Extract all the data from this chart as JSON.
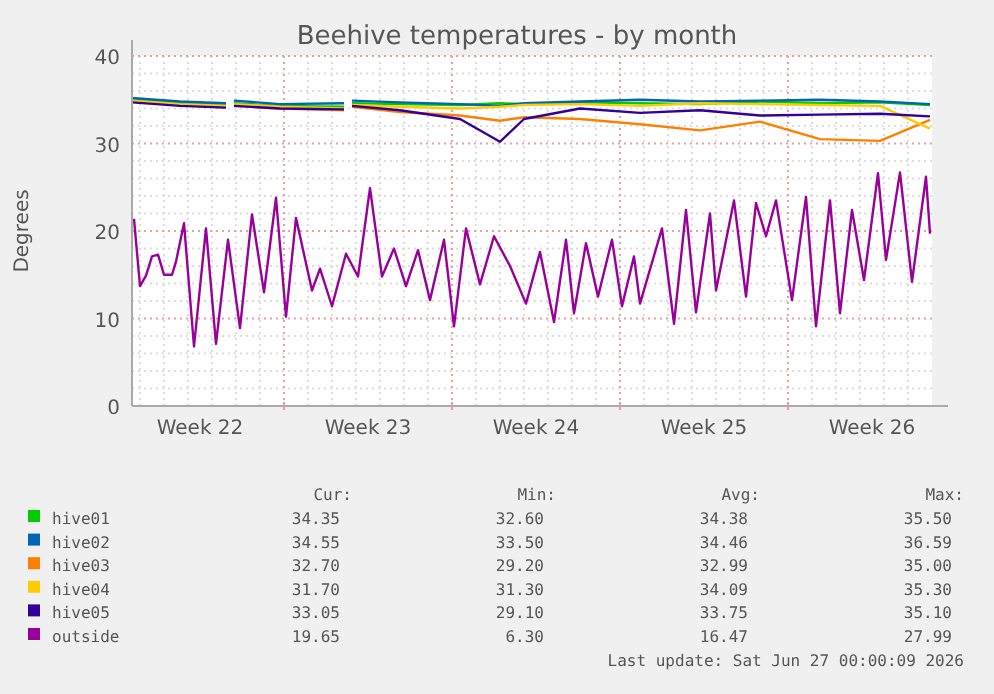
{
  "chart_data": {
    "type": "line",
    "title": "Beehive temperatures - by month",
    "ylabel": "Degrees",
    "xlim": [
      "2026-05-25T16:00",
      "2026-06-28T00:00"
    ],
    "xticks": [
      {
        "value": "2026-05-28T12:00",
        "label": "Week 22"
      },
      {
        "value": "2026-06-01",
        "label": null
      },
      {
        "value": "2026-06-04T12:00",
        "label": "Week 23"
      },
      {
        "value": "2026-06-08",
        "label": null
      },
      {
        "value": "2026-06-11T12:00",
        "label": "Week 24"
      },
      {
        "value": "2026-06-15",
        "label": null
      },
      {
        "value": "2026-06-18T12:00",
        "label": "Week 25"
      },
      {
        "value": "2026-06-22",
        "label": null
      },
      {
        "value": "2026-06-25T12:00",
        "label": "Week 26"
      }
    ],
    "ylim": [
      0,
      40
    ],
    "yticks": [
      0,
      10,
      20,
      30,
      40
    ],
    "grid": true,
    "legend": "bottom",
    "marker": "none",
    "line_style": "solid",
    "x": [
      "2026-05-25T16:00",
      "2026-05-27T16:00",
      "2026-05-29T14:00",
      "2026-05-29T18:00",
      "2026-05-29T22:00",
      "2026-05-31T20:00",
      "2026-06-03T12:00",
      "2026-06-03T16:00",
      "2026-06-03T20:00",
      "2026-06-05T20:00",
      "2026-06-08T08:00",
      "2026-06-10T00:00",
      "2026-06-11T00:00",
      "2026-06-13T08:00",
      "2026-06-15T20:00",
      "2026-06-18T08:00",
      "2026-06-20T20:00",
      "2026-06-23T08:00",
      "2026-06-25T20:00",
      "2026-06-27T22:00"
    ],
    "series": [
      {
        "name": "hive01",
        "color": "#00cc00",
        "values": [
          35,
          34.6,
          34.4,
          null,
          34.6,
          34.3,
          34.2,
          null,
          34.6,
          34.5,
          34.4,
          34.6,
          34.5,
          34.7,
          34.6,
          34.5,
          34.8,
          34.6,
          34.7,
          34.4
        ]
      },
      {
        "name": "hive02",
        "color": "#0066b3",
        "values": [
          35.2,
          34.8,
          34.6,
          null,
          34.9,
          34.5,
          34.6,
          null,
          34.9,
          34.7,
          34.5,
          34.3,
          34.6,
          34.8,
          35,
          34.8,
          34.9,
          35,
          34.8,
          34.5
        ]
      },
      {
        "name": "hive03",
        "color": "#ff8000",
        "values": [
          34.8,
          34.4,
          34.1,
          null,
          34.3,
          34,
          33.8,
          null,
          34.2,
          33.6,
          33.2,
          32.6,
          33,
          32.8,
          32.2,
          31.5,
          32.5,
          30.5,
          30.3,
          32.7
        ]
      },
      {
        "name": "hive04",
        "color": "#ffcc00",
        "values": [
          34.9,
          34.5,
          34.3,
          null,
          34.5,
          34.2,
          34,
          null,
          34.4,
          34.2,
          34,
          34.2,
          34.4,
          34.5,
          34.3,
          34.6,
          34.5,
          34.4,
          34.3,
          31.7
        ]
      },
      {
        "name": "hive05",
        "color": "#330099",
        "values": [
          34.7,
          34.3,
          34.1,
          null,
          34.3,
          34,
          33.9,
          null,
          34.3,
          33.8,
          32.8,
          30.2,
          32.8,
          34,
          33.5,
          33.8,
          33.2,
          33.3,
          33.4,
          33.1
        ]
      },
      {
        "name": "outside",
        "color": "#990099",
        "x": [
          "2026-05-25T18:00",
          "2026-05-26T00:00",
          "2026-05-26T06:00",
          "2026-05-26T12:00",
          "2026-05-26T18:00",
          "2026-05-27T00:00",
          "2026-05-27T08:00",
          "2026-05-27T12:00",
          "2026-05-27T20:00",
          "2026-05-28T06:00",
          "2026-05-28T18:00",
          "2026-05-29T04:00",
          "2026-05-29T16:00",
          "2026-05-30T04:00",
          "2026-05-30T16:00",
          "2026-05-31T04:00",
          "2026-05-31T16:00",
          "2026-06-01T02:00",
          "2026-06-01T12:00",
          "2026-06-02T04:00",
          "2026-06-02T12:00",
          "2026-06-03T00:00",
          "2026-06-03T14:00",
          "2026-06-04T02:00",
          "2026-06-04T14:00",
          "2026-06-05T02:00",
          "2026-06-05T14:00",
          "2026-06-06T02:00",
          "2026-06-06T14:00",
          "2026-06-07T02:00",
          "2026-06-07T16:00",
          "2026-06-08T02:00",
          "2026-06-08T14:00",
          "2026-06-09T04:00",
          "2026-06-09T18:00",
          "2026-06-10T10:00",
          "2026-06-11T02:00",
          "2026-06-11T16:00",
          "2026-06-12T06:00",
          "2026-06-12T18:00",
          "2026-06-13T02:00",
          "2026-06-13T14:00",
          "2026-06-14T02:00",
          "2026-06-14T16:00",
          "2026-06-15T02:00",
          "2026-06-15T14:00",
          "2026-06-15T20:00",
          "2026-06-16T18:00",
          "2026-06-17T06:00",
          "2026-06-17T18:00",
          "2026-06-18T04:00",
          "2026-06-18T18:00",
          "2026-06-19T00:00",
          "2026-06-19T18:00",
          "2026-06-20T06:00",
          "2026-06-20T16:00",
          "2026-06-21T02:00",
          "2026-06-21T12:00",
          "2026-06-22T04:00",
          "2026-06-22T18:00",
          "2026-06-23T04:00",
          "2026-06-23T18:00",
          "2026-06-24T04:00",
          "2026-06-24T16:00",
          "2026-06-25T04:00",
          "2026-06-25T18:00",
          "2026-06-26T02:00",
          "2026-06-26T16:00",
          "2026-06-27T04:00",
          "2026-06-27T18:00",
          "2026-06-27T22:00"
        ],
        "values": [
          21.4,
          13.7,
          14.9,
          17.1,
          17.3,
          15,
          15,
          16.5,
          20.9,
          6.8,
          20.3,
          7.1,
          19,
          8.9,
          21.9,
          13,
          23.8,
          10.2,
          21.5,
          13.2,
          15.7,
          11.4,
          17.4,
          14.8,
          24.9,
          14.8,
          18,
          13.7,
          17.8,
          12.1,
          19,
          9.1,
          20.3,
          13.9,
          19.4,
          16,
          11.7,
          17.6,
          9.6,
          19,
          10.6,
          18.6,
          12.5,
          19,
          11.4,
          17.1,
          11.7,
          20.3,
          9.4,
          22.4,
          10.7,
          22,
          13.2,
          23.5,
          12.5,
          23.2,
          19.4,
          23.5,
          12.1,
          23.9,
          9.1,
          23.5,
          10.6,
          22.4,
          14.4,
          26.6,
          16.7,
          26.7,
          14.2,
          26.2,
          19.7
        ]
      }
    ],
    "annotations": [
      "Cur:",
      "Min:",
      "Avg:",
      "Max:",
      "34.35",
      "32.60",
      "34.38",
      "35.50",
      "34.55",
      "33.50",
      "34.46",
      "36.59",
      "32.70",
      "29.20",
      "32.99",
      "35.00",
      "31.70",
      "31.30",
      "34.09",
      "35.30",
      "33.05",
      "29.10",
      "33.75",
      "35.10",
      "19.65",
      "6.30",
      "16.47",
      "27.99",
      "Last update: Sat Jun 27 00:00:09 2026"
    ]
  }
}
